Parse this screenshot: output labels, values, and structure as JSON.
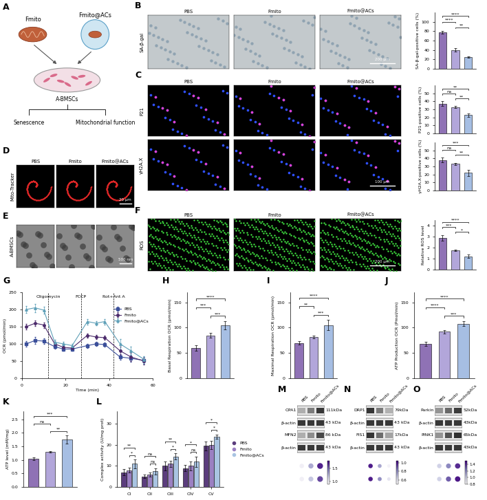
{
  "panel_letters": [
    "A",
    "B",
    "C",
    "D",
    "E",
    "F",
    "G",
    "H",
    "I",
    "J",
    "K",
    "L",
    "M",
    "N",
    "O"
  ],
  "schematic": {
    "inputs": [
      "Fmito",
      "Fmito@ACs"
    ],
    "target": "A-BMSCs",
    "readouts": [
      "Senescence",
      "Mitochondrial function"
    ]
  },
  "image_panels": [
    {
      "columns": [
        "PBS",
        "Fmito",
        "Fmito@ACs"
      ],
      "rows": [
        {
          "label": "SA-β-gal",
          "kind": "bright",
          "scale_bar": "200 μm"
        }
      ]
    },
    {
      "columns": [
        "PBS",
        "Fmito",
        "Fmito@ACs"
      ],
      "rows": [
        {
          "label": "P21",
          "kind": "nuclear"
        },
        {
          "label": "γH2A.X",
          "kind": "nuclear",
          "scale_bar": "100 μm"
        }
      ]
    },
    {
      "columns": [
        "PBS",
        "Fmito",
        "Fmito@ACs"
      ],
      "rows": [
        {
          "label": "Mito-Tracker",
          "kind": "mito",
          "scale_bar": "20 μm"
        }
      ]
    },
    {
      "rows": [
        {
          "label": "A-BMSCs",
          "kind": "tem",
          "scale_bar": "500 nm"
        }
      ]
    },
    {
      "columns": [
        "PBS",
        "Fmito",
        "Fmito@ACs"
      ],
      "rows": [
        {
          "label": "ROS",
          "kind": "ros",
          "scale_bar": "200 μm"
        }
      ]
    }
  ],
  "chart_data": [
    {
      "type": "bar",
      "y_label": "SA-β-gal-positive cells (%)",
      "categories": [
        "PBS",
        "Fmito",
        "Fmito@ACs"
      ],
      "values": [
        78,
        40,
        25
      ],
      "errors": [
        3,
        4,
        1
      ],
      "colors": [
        "#8f72b5",
        "#b2a6da",
        "#a6bee3"
      ],
      "ylim": [
        0,
        120
      ],
      "yticks": [
        0,
        20,
        40,
        60,
        80,
        100
      ],
      "tick_labels": "y",
      "significance": [
        {
          "groups": [
            "PBS",
            "Fmito@ACs"
          ],
          "label": "****"
        },
        {
          "groups": [
            "PBS",
            "Fmito"
          ],
          "label": "****"
        },
        {
          "groups": [
            "Fmito",
            "Fmito@ACs"
          ],
          "label": "**"
        }
      ]
    },
    {
      "type": "bar",
      "y_label": "P21-positive cells (%)",
      "categories": [
        "PBS",
        "Fmito",
        "Fmito@ACs"
      ],
      "values": [
        37,
        33,
        23
      ],
      "errors": [
        3,
        1,
        2
      ],
      "colors": [
        "#8f72b5",
        "#b2a6da",
        "#a6bee3"
      ],
      "ylim": [
        0,
        60
      ],
      "yticks": [
        0,
        10,
        20,
        30,
        40,
        50
      ],
      "tick_labels": "y",
      "significance": [
        {
          "groups": [
            "PBS",
            "Fmito@ACs"
          ],
          "label": "**"
        },
        {
          "groups": [
            "PBS",
            "Fmito"
          ],
          "label": "ns"
        },
        {
          "groups": [
            "Fmito",
            "Fmito@ACs"
          ],
          "label": "**"
        }
      ]
    },
    {
      "type": "bar",
      "y_label": "γH2A.X-positive cells (%)",
      "categories": [
        "PBS",
        "Fmito",
        "Fmito@ACs"
      ],
      "values": [
        38,
        33,
        22
      ],
      "errors": [
        3,
        1,
        4
      ],
      "colors": [
        "#8f72b5",
        "#b2a6da",
        "#a6bee3"
      ],
      "ylim": [
        0,
        60
      ],
      "yticks": [
        0,
        10,
        20,
        30,
        40,
        50
      ],
      "tick_labels": "y",
      "significance": [
        {
          "groups": [
            "PBS",
            "Fmito@ACs"
          ],
          "label": "***"
        },
        {
          "groups": [
            "PBS",
            "Fmito"
          ],
          "label": "ns"
        },
        {
          "groups": [
            "Fmito",
            "Fmito@ACs"
          ],
          "label": "**"
        }
      ]
    },
    {
      "type": "bar",
      "y_label": "Relative ROS level",
      "categories": [
        "PBS",
        "Fmito",
        "Fmito@ACs"
      ],
      "values": [
        2.9,
        1.75,
        1.2
      ],
      "errors": [
        0.25,
        0.05,
        0.15
      ],
      "colors": [
        "#8f72b5",
        "#b2a6da",
        "#a6bee3"
      ],
      "ylim": [
        0,
        4.5
      ],
      "yticks": [
        0,
        1,
        2,
        3,
        4
      ],
      "tick_labels": "y",
      "significance": [
        {
          "groups": [
            "PBS",
            "Fmito@ACs"
          ],
          "label": "****"
        },
        {
          "groups": [
            "PBS",
            "Fmito"
          ],
          "label": "***"
        },
        {
          "groups": [
            "Fmito",
            "Fmito@ACs"
          ],
          "label": "*"
        }
      ]
    },
    {
      "type": "line",
      "x_label": "Time (min)",
      "y_label": "OCR (pmol/min)",
      "x": [
        2,
        6,
        10,
        15,
        19,
        23,
        30,
        34,
        38,
        45,
        50,
        56
      ],
      "series": [
        {
          "name": "PBS",
          "color": "#3b4f9a",
          "marker": "square",
          "line_style": "solid",
          "values": [
            100,
            110,
            108,
            92,
            85,
            85,
            95,
            100,
            98,
            62,
            58,
            52
          ],
          "errors": [
            8,
            10,
            8,
            5,
            5,
            5,
            6,
            6,
            6,
            8,
            10,
            10
          ]
        },
        {
          "name": "Fmito",
          "color": "#4b2a6b",
          "marker": "circle",
          "line_style": "solid",
          "values": [
            150,
            160,
            155,
            100,
            90,
            88,
            125,
            120,
            118,
            80,
            62,
            50
          ],
          "errors": [
            8,
            8,
            8,
            6,
            5,
            5,
            6,
            6,
            6,
            12,
            12,
            10
          ]
        },
        {
          "name": "Fmito@ACs",
          "color": "#5fa0b8",
          "marker": "triangle",
          "line_style": "solid",
          "values": [
            200,
            205,
            198,
            105,
            100,
            95,
            165,
            160,
            165,
            100,
            80,
            55
          ],
          "errors": [
            10,
            12,
            10,
            8,
            6,
            6,
            8,
            6,
            8,
            15,
            12,
            10
          ]
        }
      ],
      "xlim": [
        0,
        60
      ],
      "xticks": [
        0,
        20,
        40,
        60
      ],
      "ylim": [
        0,
        250
      ],
      "yticks": [
        0,
        50,
        100,
        150,
        200,
        250
      ],
      "legend": "upper right",
      "annotations": [
        {
          "x": 12,
          "label": "Oligomycin"
        },
        {
          "x": 27,
          "label": "FCCP"
        },
        {
          "x": 42,
          "label": "Rot+Ant A"
        }
      ]
    },
    {
      "type": "bar",
      "y_label": "Basal Respiration OCR (pmol/min)",
      "categories": [
        "PBS",
        "Fmito",
        "Fmito@ACs"
      ],
      "values": [
        60,
        85,
        105
      ],
      "errors": [
        5,
        5,
        8
      ],
      "colors": [
        "#8f72b5",
        "#b2a6da",
        "#a6bee3"
      ],
      "ylim": [
        0,
        170
      ],
      "yticks": [
        0,
        50,
        100,
        150
      ],
      "tick_labels": "y",
      "significance": [
        {
          "groups": [
            "PBS",
            "Fmito@ACs"
          ],
          "label": "****"
        },
        {
          "groups": [
            "PBS",
            "Fmito"
          ],
          "label": "***"
        },
        {
          "groups": [
            "Fmito",
            "Fmito@ACs"
          ],
          "label": "***"
        }
      ]
    },
    {
      "type": "bar",
      "y_label": "Maximal Respiration OCR (pmol/min)",
      "categories": [
        "PBS",
        "Fmito",
        "Fmito@ACs"
      ],
      "values": [
        70,
        82,
        105
      ],
      "errors": [
        3,
        3,
        10
      ],
      "colors": [
        "#8f72b5",
        "#b2a6da",
        "#a6bee3"
      ],
      "ylim": [
        0,
        170
      ],
      "yticks": [
        0,
        50,
        100,
        150
      ],
      "tick_labels": "y",
      "significance": [
        {
          "groups": [
            "PBS",
            "Fmito@ACs"
          ],
          "label": "****"
        },
        {
          "groups": [
            "PBS",
            "Fmito"
          ],
          "label": "**"
        },
        {
          "groups": [
            "Fmito",
            "Fmito@ACs"
          ],
          "label": "***"
        }
      ]
    },
    {
      "type": "bar",
      "y_label": "ATP Production OCR (Pmol/min)",
      "categories": [
        "PBS",
        "Fmito",
        "Fmito@ACs"
      ],
      "values": [
        68,
        92,
        108
      ],
      "errors": [
        4,
        3,
        5
      ],
      "colors": [
        "#8f72b5",
        "#b2a6da",
        "#a6bee3"
      ],
      "ylim": [
        0,
        170
      ],
      "yticks": [
        0,
        50,
        100,
        150
      ],
      "tick_labels": "y",
      "significance": [
        {
          "groups": [
            "PBS",
            "Fmito@ACs"
          ],
          "label": "****"
        },
        {
          "groups": [
            "PBS",
            "Fmito"
          ],
          "label": "****"
        },
        {
          "groups": [
            "Fmito",
            "Fmito@ACs"
          ],
          "label": "***"
        }
      ]
    },
    {
      "type": "bar",
      "y_label": "ATP level (mM/mg)",
      "categories": [
        "PBS",
        "Fmito",
        "Fmito@ACs"
      ],
      "values": [
        1.05,
        1.3,
        1.75
      ],
      "errors": [
        0.05,
        0.03,
        0.15
      ],
      "colors": [
        "#8f72b5",
        "#b2a6da",
        "#a6bee3"
      ],
      "ylim": [
        0,
        2.8
      ],
      "yticks": [
        0.0,
        0.5,
        1.0,
        1.5,
        2.0,
        2.5
      ],
      "tick_labels": "y",
      "significance": [
        {
          "groups": [
            "PBS",
            "Fmito@ACs"
          ],
          "label": "***"
        },
        {
          "groups": [
            "PBS",
            "Fmito"
          ],
          "label": "ns"
        },
        {
          "groups": [
            "Fmito",
            "Fmito@ACs"
          ],
          "label": "**"
        }
      ]
    },
    {
      "type": "bar",
      "y_label": "Complex activity (U/mg prot)",
      "categories": [
        "CI",
        "CII",
        "CIII",
        "CIV",
        "CV"
      ],
      "series": [
        {
          "name": "PBS",
          "color": "#5b3d7d",
          "values": [
            7,
            5,
            10,
            9,
            19.5
          ],
          "errors": [
            1.5,
            0.8,
            2,
            1.5,
            2
          ]
        },
        {
          "name": "Fmito",
          "color": "#9b80c2",
          "values": [
            8,
            6,
            11,
            10,
            20
          ],
          "errors": [
            1.2,
            1,
            1.5,
            2,
            2
          ]
        },
        {
          "name": "Fmito@ACs",
          "color": "#a9c4e2",
          "values": [
            11,
            7.5,
            14.5,
            12,
            24
          ],
          "errors": [
            2,
            1.5,
            1.5,
            2.5,
            1
          ]
        }
      ],
      "ylim": [
        0,
        36
      ],
      "yticks": [
        0,
        10,
        20,
        30
      ],
      "legend": "right",
      "significance": [
        {
          "category": "CI",
          "groups": [
            "PBS",
            "Fmito@ACs"
          ],
          "label": "**"
        },
        {
          "category": "CI",
          "groups": [
            "Fmito",
            "Fmito@ACs"
          ],
          "label": "*"
        },
        {
          "category": "CII",
          "groups": [
            "PBS",
            "Fmito@ACs"
          ],
          "label": "ns"
        },
        {
          "category": "CII",
          "groups": [
            "Fmito",
            "Fmito@ACs"
          ],
          "label": "ns"
        },
        {
          "category": "CIII",
          "groups": [
            "PBS",
            "Fmito@ACs"
          ],
          "label": "**"
        },
        {
          "category": "CIII",
          "groups": [
            "Fmito",
            "Fmito@ACs"
          ],
          "label": "*"
        },
        {
          "category": "CIV",
          "groups": [
            "PBS",
            "Fmito@ACs"
          ],
          "label": "*"
        },
        {
          "category": "CIV",
          "groups": [
            "Fmito",
            "Fmito@ACs"
          ],
          "label": "ns"
        },
        {
          "category": "CV",
          "groups": [
            "PBS",
            "Fmito@ACs"
          ],
          "label": "*"
        },
        {
          "category": "CV",
          "groups": [
            "Fmito",
            "Fmito@ACs"
          ],
          "label": "*"
        }
      ]
    }
  ],
  "blots": [
    {
      "columns": [
        "PBS",
        "Fmito",
        "Fmito@ACs"
      ],
      "rows": [
        {
          "protein": "OPA1",
          "size": "111kDa"
        },
        {
          "protein": "β-actin",
          "size": "43 kDa"
        },
        {
          "protein": "MFN2",
          "size": "86 kDa"
        },
        {
          "protein": "β-actin",
          "size": "43 kDa"
        }
      ],
      "relative_levels": [
        [
          1.0,
          1.3,
          1.7
        ],
        [
          1.0,
          1.2,
          1.6
        ]
      ],
      "color_range": [
        0.9,
        1.8
      ],
      "color_ticks": [
        1.0,
        1.5
      ]
    },
    {
      "columns": [
        "PBS",
        "Fmito",
        "Fmito@ACs"
      ],
      "rows": [
        {
          "protein": "DRP1",
          "size": "79kDa"
        },
        {
          "protein": "β-actin",
          "size": "43 kDa"
        },
        {
          "protein": "FIS1",
          "size": "17kDa"
        },
        {
          "protein": "β-actin",
          "size": "43 kDa"
        }
      ],
      "relative_levels": [
        [
          1.0,
          0.75,
          0.55
        ],
        [
          1.0,
          0.8,
          0.6
        ]
      ],
      "color_range": [
        0.5,
        1.05
      ],
      "color_ticks": [
        0.6,
        0.8,
        1.0
      ]
    },
    {
      "columns": [
        "PBS",
        "Fmito",
        "Fmito@ACs"
      ],
      "rows": [
        {
          "protein": "Parkin",
          "size": "52kDa"
        },
        {
          "protein": "β-actin",
          "size": "43kDa"
        },
        {
          "protein": "PINK1",
          "size": "65kDa"
        },
        {
          "protein": "β-actin",
          "size": "43kDa"
        }
      ],
      "relative_levels": [
        [
          1.0,
          1.2,
          1.4
        ],
        [
          1.0,
          1.3,
          1.45
        ]
      ],
      "color_range": [
        0.8,
        1.5
      ],
      "color_ticks": [
        0.8,
        1.0,
        1.2,
        1.4
      ]
    }
  ]
}
